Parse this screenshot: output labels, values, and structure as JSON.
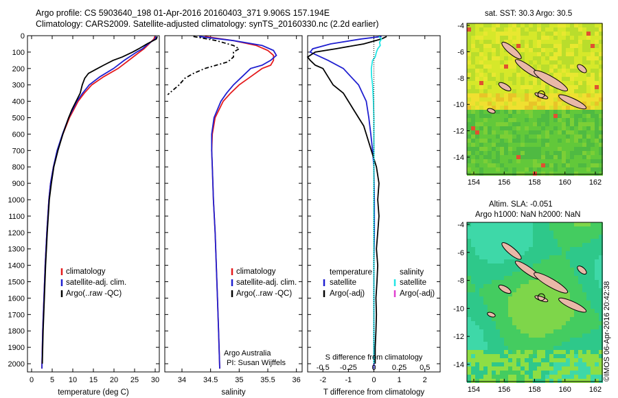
{
  "titles": {
    "line1": "Argo profile: CS 5903640_198 01-Apr-2016 20160403_371 9.906S 157.194E",
    "line2": "Climatology: CARS2009. Satellite-adjusted climatology: synTS_20160330.nc (2.2d earlier)"
  },
  "maps": {
    "sst_title": "sat. SST: 30.3 Argo: 30.5",
    "sla_title1": "Altim. SLA: -0.051",
    "sla_title2": "Argo h1000: NaN h2000: NaN"
  },
  "credit": "©IMOS 06-Apr-2016 20:42:38",
  "annotations": {
    "inst": "Argo Australia",
    "pi": "PI: Susan Wijffels"
  },
  "colors": {
    "climatology": "#e41a1c",
    "satellite": "#1f1fd0",
    "argo": "#000000",
    "salinity_sat": "#22e5e5",
    "salinity_argo": "#e040d0"
  },
  "chart_data": [
    {
      "type": "line",
      "id": "temperature",
      "xlabel": "temperature (deg C)",
      "xlim": [
        -1,
        31
      ],
      "ylim": [
        0,
        2050
      ],
      "xticks": [
        0,
        5,
        10,
        15,
        20,
        25,
        30
      ],
      "yticks": [
        0,
        100,
        200,
        300,
        400,
        500,
        600,
        700,
        800,
        900,
        1000,
        1100,
        1200,
        1300,
        1400,
        1500,
        1600,
        1700,
        1800,
        1900,
        2000
      ],
      "legend": [
        "climatology",
        "satellite-adj. clim.",
        "Argo(..raw -QC)"
      ],
      "series": [
        {
          "name": "climatology",
          "color": "#e41a1c",
          "depth": [
            5,
            20,
            50,
            80,
            100,
            150,
            200,
            250,
            300,
            350,
            400,
            500,
            600,
            700,
            800,
            900,
            1000,
            1200,
            1400,
            1600,
            1800,
            2030
          ],
          "values": [
            29.9,
            29.7,
            28.5,
            27.3,
            26.2,
            23.6,
            21.0,
            17.5,
            14.6,
            12.8,
            11.3,
            9.2,
            7.6,
            6.3,
            5.3,
            4.6,
            4.2,
            3.7,
            3.3,
            3.0,
            2.7,
            2.5
          ]
        },
        {
          "name": "satellite-adj. clim.",
          "color": "#1f1fd0",
          "depth": [
            5,
            20,
            50,
            80,
            100,
            150,
            200,
            250,
            300,
            350,
            400,
            500,
            600,
            700,
            800,
            900,
            1000,
            1200,
            1400,
            1600,
            1800,
            2030
          ],
          "values": [
            30.2,
            30.0,
            28.3,
            26.9,
            25.5,
            22.5,
            19.9,
            16.6,
            14.0,
            12.4,
            11.0,
            9.0,
            7.5,
            6.2,
            5.3,
            4.6,
            4.2,
            3.7,
            3.3,
            3.0,
            2.7,
            2.5
          ]
        },
        {
          "name": "Argo(..raw -QC)",
          "color": "#000000",
          "depth": [
            5,
            20,
            50,
            80,
            100,
            130,
            150,
            180,
            200,
            230,
            260,
            300,
            350,
            400,
            450,
            500,
            600,
            700,
            800,
            900,
            1000,
            1200,
            1400,
            1600,
            1800,
            2000
          ],
          "values": [
            30.5,
            30.3,
            28.0,
            26.0,
            24.5,
            22.0,
            19.8,
            17.5,
            16.0,
            13.8,
            12.9,
            12.3,
            11.8,
            10.8,
            9.8,
            9.0,
            7.6,
            6.4,
            5.4,
            4.8,
            4.3,
            3.8,
            3.4,
            3.1,
            2.8,
            2.6
          ]
        }
      ]
    },
    {
      "type": "line",
      "id": "salinity",
      "xlabel": "salinity",
      "xlim": [
        33.7,
        36.1
      ],
      "ylim": [
        0,
        2050
      ],
      "xticks": [
        34,
        34.5,
        35,
        35.5,
        36
      ],
      "legend": [
        "climatology",
        "satellite-adj. clim.",
        "Argo(..raw -QC)"
      ],
      "series": [
        {
          "name": "climatology",
          "color": "#e41a1c",
          "depth": [
            5,
            30,
            60,
            90,
            120,
            150,
            180,
            200,
            250,
            300,
            350,
            400,
            500,
            600,
            700,
            800,
            1000,
            1200,
            1400,
            1600,
            1800,
            2030
          ],
          "values": [
            34.4,
            34.9,
            35.3,
            35.5,
            35.6,
            35.6,
            35.55,
            35.4,
            35.2,
            35.0,
            34.85,
            34.72,
            34.58,
            34.53,
            34.52,
            34.53,
            34.55,
            34.58,
            34.6,
            34.62,
            34.64,
            34.66
          ]
        },
        {
          "name": "satellite-adj. clim.",
          "color": "#1f1fd0",
          "depth": [
            5,
            30,
            60,
            90,
            120,
            150,
            180,
            200,
            250,
            300,
            350,
            400,
            500,
            600,
            700,
            800,
            1000,
            1200,
            1400,
            1600,
            1800,
            2030
          ],
          "values": [
            34.3,
            34.9,
            35.4,
            35.6,
            35.65,
            35.55,
            35.4,
            35.2,
            35.05,
            34.9,
            34.78,
            34.68,
            34.56,
            34.52,
            34.52,
            34.53,
            34.55,
            34.58,
            34.6,
            34.62,
            34.64,
            34.66
          ]
        },
        {
          "name": "Argo(..raw -QC)",
          "color": "#000000",
          "depth": [
            5,
            30,
            60,
            80,
            100,
            130,
            160,
            180,
            200,
            230,
            260,
            300,
            330,
            360
          ],
          "values": [
            34.2,
            34.6,
            34.9,
            35.0,
            34.9,
            34.9,
            34.8,
            34.6,
            34.4,
            34.2,
            34.05,
            33.95,
            33.85,
            33.75
          ]
        }
      ]
    },
    {
      "type": "line",
      "id": "difference",
      "xlabel": "T difference from climatology",
      "xlabel_top": "S difference from climatology",
      "xlim": [
        -2.6,
        2.6
      ],
      "ylim": [
        0,
        2050
      ],
      "xticks": [
        -2,
        -1,
        0,
        1,
        2
      ],
      "xticks_top": [
        "-0.5",
        "-0.25",
        "0",
        "0.25",
        "0.5"
      ],
      "legend_left_title": "temperature",
      "legend_right_title": "salinity",
      "legend_left": [
        "satellite",
        "Argo(-adj)"
      ],
      "legend_right": [
        "satellite",
        "Argo(-adj)"
      ],
      "series": [
        {
          "name": "T satellite",
          "color": "#1f1fd0",
          "depth": [
            5,
            20,
            50,
            80,
            100,
            150,
            200,
            250,
            300,
            350,
            400,
            500,
            600,
            700,
            800,
            1000,
            1200,
            1400,
            1600,
            1800,
            2030
          ],
          "values": [
            0.3,
            -0.5,
            -1.7,
            -2.4,
            -2.5,
            -1.8,
            -1.2,
            -0.9,
            -0.6,
            -0.45,
            -0.3,
            -0.2,
            -0.12,
            -0.05,
            0.0,
            0.02,
            0.02,
            0.0,
            0.0,
            0.0,
            0.0
          ]
        },
        {
          "name": "T Argo(-adj)",
          "color": "#000000",
          "depth": [
            5,
            20,
            50,
            80,
            100,
            130,
            150,
            180,
            200,
            250,
            300,
            350,
            400,
            450,
            500,
            550,
            600,
            650,
            700,
            800,
            900,
            1000,
            1100,
            1200,
            1300,
            1400,
            1500,
            1600,
            1700,
            1800,
            1900,
            2000
          ],
          "values": [
            0.5,
            0.3,
            -0.4,
            -1.5,
            -2.3,
            -2.6,
            -2.5,
            -2.3,
            -2.0,
            -1.8,
            -1.6,
            -1.2,
            -1.0,
            -0.8,
            -0.6,
            -0.4,
            -0.3,
            -0.2,
            -0.1,
            0.1,
            0.2,
            0.15,
            0.2,
            0.15,
            0.1,
            0.15,
            0.12,
            0.08,
            0.1,
            0.08,
            0.05,
            0.05
          ]
        },
        {
          "name": "S satellite",
          "color": "#22e5e5",
          "depth": [
            5,
            20,
            40,
            60,
            80,
            100,
            130,
            150,
            180,
            200,
            250,
            300,
            400,
            500,
            600,
            700,
            800,
            1000,
            1200,
            1500,
            2000
          ],
          "values": [
            0.2,
            0.3,
            0.22,
            0.25,
            0.15,
            0.1,
            0.05,
            -0.05,
            -0.08,
            -0.1,
            -0.09,
            -0.05,
            -0.02,
            0.0,
            0.0,
            0.0,
            0.0,
            0.0,
            0.0,
            0.0,
            0.0
          ]
        }
      ]
    }
  ],
  "map_axes": {
    "xticks": [
      "154",
      "156",
      "158",
      "160",
      "162"
    ],
    "yticks": [
      "-4",
      "-6",
      "-8",
      "-10",
      "-12",
      "-14"
    ]
  }
}
